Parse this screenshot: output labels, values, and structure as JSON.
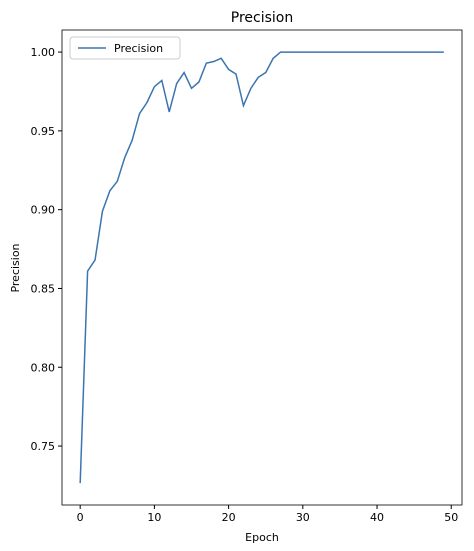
{
  "chart_data": {
    "type": "line",
    "title": "Precision",
    "x_label": "Epoch",
    "y_label": "Precision",
    "x": [
      0,
      1,
      2,
      3,
      4,
      5,
      6,
      7,
      8,
      9,
      10,
      11,
      12,
      13,
      14,
      15,
      16,
      17,
      18,
      19,
      20,
      21,
      22,
      23,
      24,
      25,
      26,
      27,
      28,
      29,
      30,
      31,
      32,
      33,
      34,
      35,
      36,
      37,
      38,
      39,
      40,
      41,
      42,
      43,
      44,
      45,
      46,
      47,
      48,
      49
    ],
    "series": [
      {
        "name": "Precision",
        "color": "#3b75af",
        "values": [
          0.7265,
          0.861,
          0.868,
          0.899,
          0.912,
          0.918,
          0.933,
          0.944,
          0.961,
          0.968,
          0.978,
          0.982,
          0.962,
          0.98,
          0.987,
          0.977,
          0.981,
          0.993,
          0.994,
          0.996,
          0.989,
          0.986,
          0.966,
          0.977,
          0.984,
          0.987,
          0.996,
          1.0,
          1.0,
          1.0,
          1.0,
          1.0,
          1.0,
          1.0,
          1.0,
          1.0,
          1.0,
          1.0,
          1.0,
          1.0,
          1.0,
          1.0,
          1.0,
          1.0,
          1.0,
          1.0,
          1.0,
          1.0,
          1.0,
          1.0
        ]
      }
    ],
    "xlim": [
      -2.45,
      51.45
    ],
    "xticks": [
      0,
      10,
      20,
      30,
      40,
      50
    ],
    "ylim": [
      0.7126,
      1.014
    ],
    "yticks": [
      {
        "value": 0.75,
        "label": "0.75"
      },
      {
        "value": 0.8,
        "label": "0.80"
      },
      {
        "value": 0.85,
        "label": "0.85"
      },
      {
        "value": 0.9,
        "label": "0.90"
      },
      {
        "value": 0.95,
        "label": "0.95"
      },
      {
        "value": 1.0,
        "label": "1.00"
      }
    ],
    "legend": "upper left",
    "grid": false
  }
}
